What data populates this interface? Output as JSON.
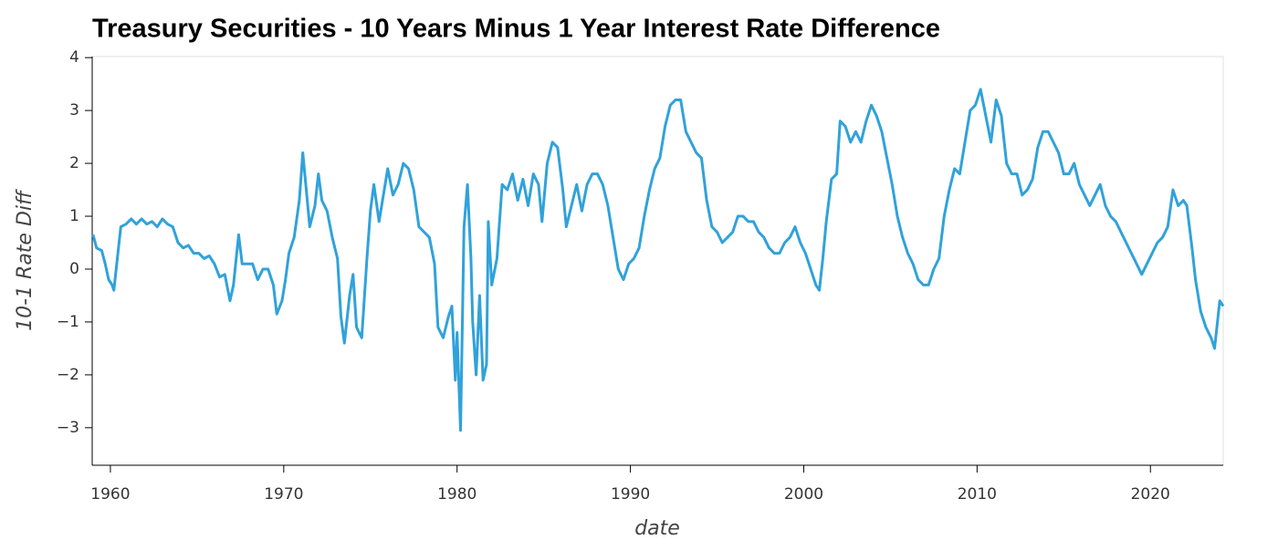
{
  "chart_data": {
    "type": "line",
    "title": "Treasury Securities - 10 Years Minus 1 Year Interest Rate Difference",
    "xlabel": "date",
    "ylabel": "10-1 Rate Diff",
    "color": "#30a2da",
    "xlim": [
      1958.95,
      2024.2
    ],
    "ylim": [
      -3.71,
      4.02
    ],
    "xticks": [
      1960,
      1970,
      1980,
      1990,
      2000,
      2010,
      2020
    ],
    "yticks": [
      {
        "value": -3,
        "label": "−3"
      },
      {
        "value": -2,
        "label": "−2"
      },
      {
        "value": -1,
        "label": "−1"
      },
      0,
      1,
      2,
      3,
      4
    ],
    "x": [
      1959.0,
      1959.2,
      1959.5,
      1959.7,
      1959.9,
      1960.1,
      1960.2,
      1960.4,
      1960.6,
      1960.9,
      1961.2,
      1961.5,
      1961.8,
      1962.1,
      1962.4,
      1962.7,
      1963.0,
      1963.3,
      1963.6,
      1963.9,
      1964.2,
      1964.5,
      1964.8,
      1965.1,
      1965.4,
      1965.7,
      1966.0,
      1966.3,
      1966.6,
      1966.9,
      1967.1,
      1967.4,
      1967.6,
      1967.9,
      1968.2,
      1968.5,
      1968.8,
      1969.1,
      1969.4,
      1969.6,
      1969.9,
      1970.1,
      1970.3,
      1970.6,
      1970.9,
      1971.1,
      1971.3,
      1971.5,
      1971.8,
      1972.0,
      1972.2,
      1972.5,
      1972.8,
      1973.1,
      1973.3,
      1973.5,
      1973.8,
      1974.0,
      1974.2,
      1974.5,
      1974.8,
      1975.0,
      1975.2,
      1975.5,
      1975.8,
      1976.0,
      1976.3,
      1976.6,
      1976.9,
      1977.2,
      1977.5,
      1977.8,
      1978.1,
      1978.4,
      1978.7,
      1978.9,
      1979.2,
      1979.5,
      1979.7,
      1979.9,
      1980.0,
      1980.2,
      1980.4,
      1980.6,
      1980.8,
      1980.9,
      1981.1,
      1981.3,
      1981.5,
      1981.7,
      1981.8,
      1982.0,
      1982.3,
      1982.6,
      1982.9,
      1983.2,
      1983.5,
      1983.8,
      1984.1,
      1984.4,
      1984.7,
      1984.9,
      1985.2,
      1985.5,
      1985.8,
      1986.1,
      1986.3,
      1986.6,
      1986.9,
      1987.2,
      1987.5,
      1987.8,
      1988.1,
      1988.4,
      1988.7,
      1989.0,
      1989.3,
      1989.6,
      1989.9,
      1990.2,
      1990.5,
      1990.8,
      1991.1,
      1991.4,
      1991.7,
      1992.0,
      1992.3,
      1992.6,
      1992.9,
      1993.2,
      1993.5,
      1993.8,
      1994.1,
      1994.4,
      1994.7,
      1995.0,
      1995.3,
      1995.6,
      1995.9,
      1996.2,
      1996.5,
      1996.8,
      1997.1,
      1997.4,
      1997.7,
      1998.0,
      1998.3,
      1998.6,
      1998.9,
      1999.2,
      1999.5,
      1999.8,
      2000.1,
      2000.4,
      2000.7,
      2000.9,
      2001.1,
      2001.3,
      2001.6,
      2001.9,
      2002.1,
      2002.4,
      2002.7,
      2003.0,
      2003.3,
      2003.6,
      2003.9,
      2004.2,
      2004.5,
      2004.8,
      2005.1,
      2005.4,
      2005.7,
      2006.0,
      2006.3,
      2006.6,
      2006.9,
      2007.2,
      2007.5,
      2007.8,
      2008.1,
      2008.4,
      2008.7,
      2009.0,
      2009.3,
      2009.6,
      2009.9,
      2010.2,
      2010.5,
      2010.8,
      2011.1,
      2011.4,
      2011.7,
      2012.0,
      2012.3,
      2012.6,
      2012.9,
      2013.2,
      2013.5,
      2013.8,
      2014.1,
      2014.4,
      2014.7,
      2015.0,
      2015.3,
      2015.6,
      2015.9,
      2016.2,
      2016.5,
      2016.8,
      2017.1,
      2017.4,
      2017.7,
      2018.0,
      2018.3,
      2018.6,
      2018.9,
      2019.2,
      2019.5,
      2019.8,
      2020.1,
      2020.4,
      2020.7,
      2021.0,
      2021.3,
      2021.6,
      2021.9,
      2022.1,
      2022.4,
      2022.6,
      2022.9,
      2023.2,
      2023.5,
      2023.7,
      2023.9,
      2024.0,
      2024.2
    ],
    "values": [
      0.65,
      0.4,
      0.35,
      0.1,
      -0.2,
      -0.3,
      -0.4,
      0.2,
      0.8,
      0.85,
      0.95,
      0.85,
      0.95,
      0.85,
      0.9,
      0.8,
      0.95,
      0.85,
      0.8,
      0.5,
      0.4,
      0.45,
      0.3,
      0.3,
      0.2,
      0.25,
      0.1,
      -0.15,
      -0.1,
      -0.6,
      -0.3,
      0.65,
      0.1,
      0.1,
      0.1,
      -0.2,
      0.0,
      0.0,
      -0.3,
      -0.85,
      -0.6,
      -0.2,
      0.3,
      0.6,
      1.3,
      2.2,
      1.5,
      0.8,
      1.2,
      1.8,
      1.3,
      1.1,
      0.6,
      0.2,
      -0.9,
      -1.4,
      -0.5,
      -0.1,
      -1.1,
      -1.3,
      0.2,
      1.1,
      1.6,
      0.9,
      1.5,
      1.9,
      1.4,
      1.6,
      2.0,
      1.9,
      1.5,
      0.8,
      0.7,
      0.6,
      0.1,
      -1.1,
      -1.3,
      -0.9,
      -0.7,
      -2.1,
      -1.2,
      -3.05,
      0.8,
      1.6,
      0.2,
      -1.0,
      -2.0,
      -0.5,
      -2.1,
      -1.8,
      0.9,
      -0.3,
      0.2,
      1.6,
      1.5,
      1.8,
      1.3,
      1.7,
      1.2,
      1.8,
      1.6,
      0.9,
      2.0,
      2.4,
      2.3,
      1.5,
      0.8,
      1.2,
      1.6,
      1.1,
      1.6,
      1.8,
      1.8,
      1.6,
      1.2,
      0.6,
      0.0,
      -0.2,
      0.1,
      0.2,
      0.4,
      1.0,
      1.5,
      1.9,
      2.1,
      2.7,
      3.1,
      3.2,
      3.2,
      2.6,
      2.4,
      2.2,
      2.1,
      1.3,
      0.8,
      0.7,
      0.5,
      0.6,
      0.7,
      1.0,
      1.0,
      0.9,
      0.9,
      0.7,
      0.6,
      0.4,
      0.3,
      0.3,
      0.5,
      0.6,
      0.8,
      0.5,
      0.3,
      0.0,
      -0.3,
      -0.4,
      0.2,
      0.9,
      1.7,
      1.8,
      2.8,
      2.7,
      2.4,
      2.6,
      2.4,
      2.8,
      3.1,
      2.9,
      2.6,
      2.1,
      1.6,
      1.0,
      0.6,
      0.3,
      0.1,
      -0.2,
      -0.3,
      -0.3,
      0.0,
      0.2,
      1.0,
      1.5,
      1.9,
      1.8,
      2.4,
      3.0,
      3.1,
      3.4,
      2.9,
      2.4,
      3.2,
      2.9,
      2.0,
      1.8,
      1.8,
      1.4,
      1.5,
      1.7,
      2.3,
      2.6,
      2.6,
      2.4,
      2.2,
      1.8,
      1.8,
      2.0,
      1.6,
      1.4,
      1.2,
      1.4,
      1.6,
      1.2,
      1.0,
      0.9,
      0.7,
      0.5,
      0.3,
      0.1,
      -0.1,
      0.1,
      0.3,
      0.5,
      0.6,
      0.8,
      1.5,
      1.2,
      1.3,
      1.2,
      0.4,
      -0.2,
      -0.8,
      -1.1,
      -1.3,
      -1.5,
      -0.9,
      -0.6,
      -0.7
    ]
  }
}
